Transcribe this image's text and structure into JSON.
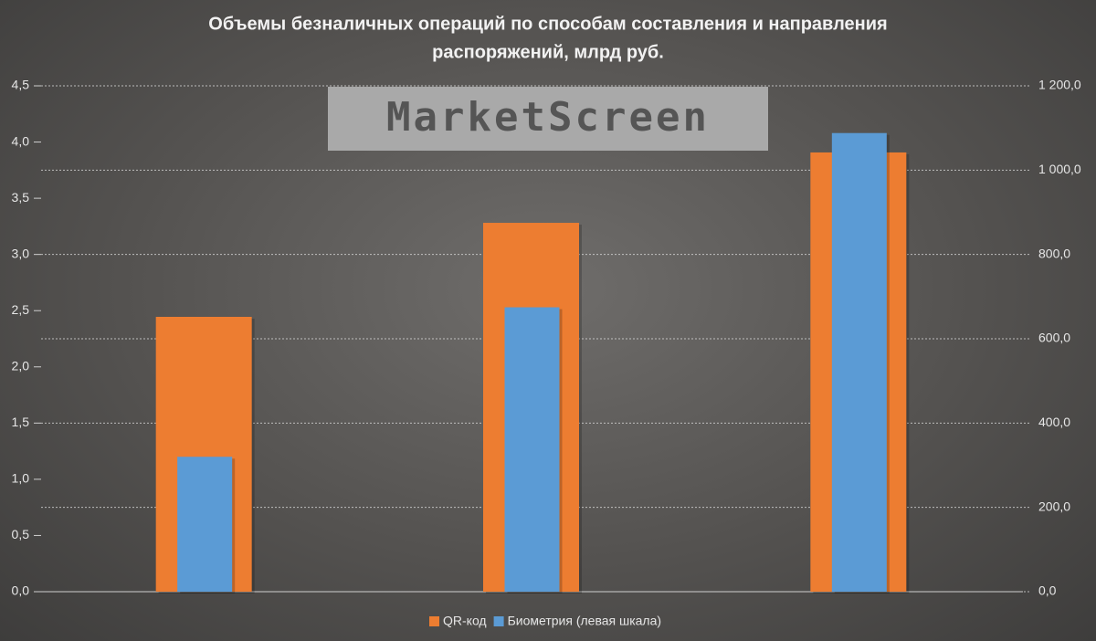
{
  "chart_data": {
    "type": "bar",
    "title": "Объемы безналичных операций по способам составления и направления",
    "subtitle": "распоряжений, млрд руб.",
    "watermark": "MarketScreen",
    "categories": [
      null,
      null,
      null
    ],
    "series": [
      {
        "name": "QR-код",
        "color": "#ed7d31",
        "axis": "y2",
        "values": [
          652,
          875,
          1042
        ]
      },
      {
        "name": "Биометрия (левая шкала)",
        "color": "#5b9bd5",
        "values": [
          1.2,
          2.53,
          4.08
        ]
      }
    ],
    "ylim": [
      0,
      4.5
    ],
    "yticks": [
      {
        "value": 0,
        "label": "0,0"
      },
      {
        "value": 0.5,
        "label": "0,5"
      },
      {
        "value": 1,
        "label": "1,0"
      },
      {
        "value": 1.5,
        "label": "1,5"
      },
      {
        "value": 2,
        "label": "2,0"
      },
      {
        "value": 2.5,
        "label": "2,5"
      },
      {
        "value": 3,
        "label": "3,0"
      },
      {
        "value": 3.5,
        "label": "3,5"
      },
      {
        "value": 4,
        "label": "4,0"
      },
      {
        "value": 4.5,
        "label": "4,5"
      }
    ],
    "y2lim": [
      0,
      1200
    ],
    "y2ticks": [
      {
        "value": 0,
        "label": "0,0"
      },
      {
        "value": 200,
        "label": "200,0"
      },
      {
        "value": 400,
        "label": "400,0"
      },
      {
        "value": 600,
        "label": "600,0"
      },
      {
        "value": 800,
        "label": "800,0"
      },
      {
        "value": 1000,
        "label": "1 000,0"
      },
      {
        "value": 1200,
        "label": "1 200,0"
      }
    ],
    "grid": true,
    "grid_axis": "y2",
    "legend": "bottom"
  }
}
